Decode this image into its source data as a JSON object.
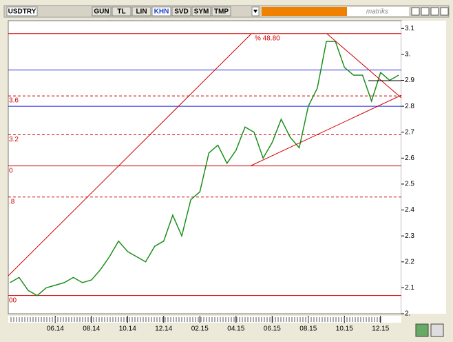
{
  "toolbar": {
    "symbol": "USDTRY",
    "buttons": [
      "GUN",
      "TL",
      "LIN",
      "KHN",
      "SVD",
      "SYM",
      "TMP"
    ],
    "active": "KHN",
    "logo": "matriks"
  },
  "chart_data": {
    "type": "line",
    "series": [
      {
        "color": "#1a8f1a",
        "values": [
          2.12,
          2.14,
          2.09,
          2.07,
          2.1,
          2.11,
          2.12,
          2.14,
          2.12,
          2.13,
          2.17,
          2.22,
          2.28,
          2.24,
          2.22,
          2.2,
          2.26,
          2.28,
          2.38,
          2.3,
          2.44,
          2.47,
          2.62,
          2.65,
          2.58,
          2.63,
          2.72,
          2.7,
          2.6,
          2.66,
          2.75,
          2.68,
          2.64,
          2.8,
          2.87,
          3.05,
          3.05,
          2.95,
          2.92,
          2.92,
          2.82,
          2.93,
          2.9,
          2.92
        ]
      }
    ],
    "xlim": [
      -0.2,
      43.3
    ],
    "xticks": [
      {
        "value": 5,
        "label": "06.14"
      },
      {
        "value": 9,
        "label": "08.14"
      },
      {
        "value": 13,
        "label": "10.14"
      },
      {
        "value": 17,
        "label": "12.14"
      },
      {
        "value": 21,
        "label": "02.15"
      },
      {
        "value": 25,
        "label": "04.15"
      },
      {
        "value": 29,
        "label": "06.15"
      },
      {
        "value": 33,
        "label": "08.15"
      },
      {
        "value": 37,
        "label": "10.15"
      },
      {
        "value": 41,
        "label": "12.15"
      }
    ],
    "ylim": [
      2.0,
      3.13
    ],
    "yticks": [
      {
        "value": 2.0,
        "label": "2."
      },
      2.1,
      2.2,
      2.3,
      2.4,
      2.5,
      2.6,
      2.7,
      2.8,
      2.9,
      {
        "value": 3.0,
        "label": "3."
      },
      3.1
    ],
    "levels": [
      {
        "value": 3.08,
        "color": "#d00000",
        "style": "solid",
        "label": "% 48.80"
      },
      {
        "value": 2.94,
        "color": "#2020e0",
        "style": "solid"
      },
      {
        "value": 2.84,
        "color": "#d00000",
        "style": "dashed",
        "label": "3.6"
      },
      {
        "value": 2.8,
        "color": "#2020e0",
        "style": "solid"
      },
      {
        "value": 2.69,
        "color": "#d00000",
        "style": "dashed",
        "label": "3.2"
      },
      {
        "value": 2.57,
        "color": "#d00000",
        "style": "solid",
        "label": "0"
      },
      {
        "value": 2.45,
        "color": "#d00000",
        "style": "dashed",
        "label": ".8"
      },
      {
        "value": 2.07,
        "color": "#d00000",
        "style": "solid",
        "label": "00"
      }
    ]
  }
}
